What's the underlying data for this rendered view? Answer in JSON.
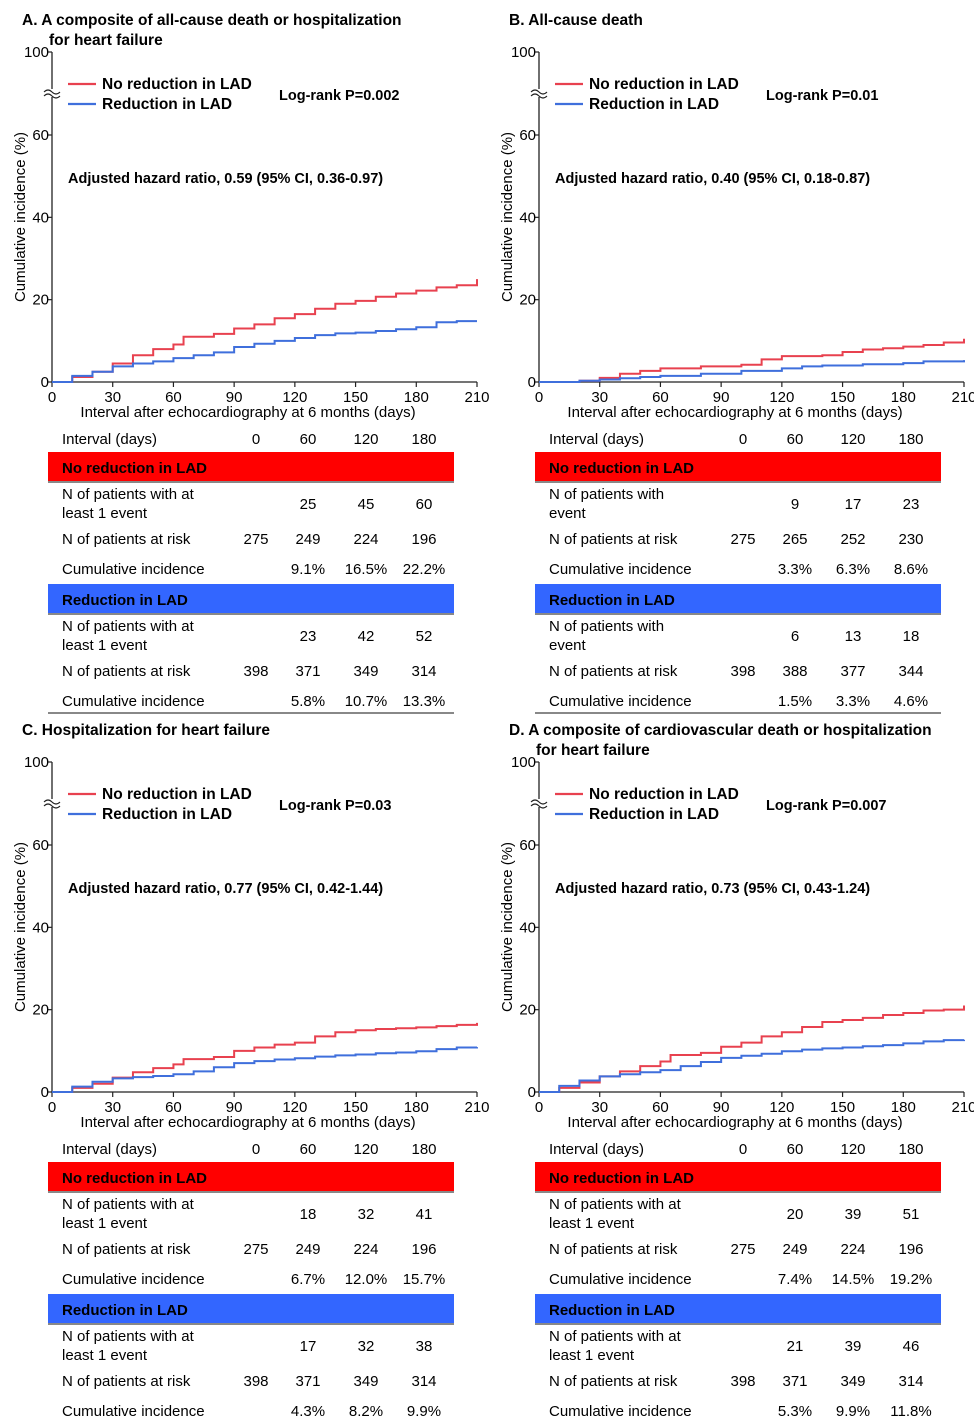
{
  "panels": [
    {
      "title_lines": [
        "A.  A composite of all-cause death or hospitalization",
        "for heart failure"
      ],
      "legend": [
        "No reduction in LAD",
        "Reduction in LAD"
      ],
      "logrank": "Log-rank P=0.002",
      "hazard": "Adjusted hazard ratio, 0.59 (95% CI, 0.36-0.97)",
      "table": {
        "header": [
          "Interval (days)",
          "0",
          "60",
          "120",
          "180"
        ],
        "groups": [
          {
            "name": "No reduction in LAD",
            "color": "#ff0000",
            "rows": [
              {
                "label": [
                  "N of patients with at",
                  "least 1 event"
                ],
                "values": [
                  "",
                  "25",
                  "45",
                  "60"
                ]
              },
              {
                "label": [
                  "N of patients at risk"
                ],
                "values": [
                  "275",
                  "249",
                  "224",
                  "196"
                ]
              },
              {
                "label": [
                  "Cumulative incidence"
                ],
                "values": [
                  "",
                  "9.1%",
                  "16.5%",
                  "22.2%"
                ]
              }
            ]
          },
          {
            "name": "Reduction in LAD",
            "color": "#3366ff",
            "rows": [
              {
                "label": [
                  "N of patients with at",
                  "least 1 event"
                ],
                "values": [
                  "",
                  "23",
                  "42",
                  "52"
                ]
              },
              {
                "label": [
                  "N of patients at risk"
                ],
                "values": [
                  "398",
                  "371",
                  "349",
                  "314"
                ]
              },
              {
                "label": [
                  "Cumulative incidence"
                ],
                "values": [
                  "",
                  "5.8%",
                  "10.7%",
                  "13.3%"
                ]
              }
            ]
          }
        ]
      }
    },
    {
      "title_lines": [
        "B.  All-cause death"
      ],
      "legend": [
        "No reduction in LAD",
        "Reduction in LAD"
      ],
      "logrank": "Log-rank P=0.01",
      "hazard": "Adjusted hazard ratio, 0.40 (95% CI, 0.18-0.87)",
      "table": {
        "header": [
          "Interval (days)",
          "0",
          "60",
          "120",
          "180"
        ],
        "groups": [
          {
            "name": "No reduction in LAD",
            "color": "#ff0000",
            "rows": [
              {
                "label": [
                  "N of patients with",
                  "event"
                ],
                "values": [
                  "",
                  "9",
                  "17",
                  "23"
                ]
              },
              {
                "label": [
                  "N of patients at risk"
                ],
                "values": [
                  "275",
                  "265",
                  "252",
                  "230"
                ]
              },
              {
                "label": [
                  "Cumulative incidence"
                ],
                "values": [
                  "",
                  "3.3%",
                  "6.3%",
                  "8.6%"
                ]
              }
            ]
          },
          {
            "name": "Reduction in LAD",
            "color": "#3366ff",
            "rows": [
              {
                "label": [
                  "N of patients with",
                  "event"
                ],
                "values": [
                  "",
                  "6",
                  "13",
                  "18"
                ]
              },
              {
                "label": [
                  "N of patients at risk"
                ],
                "values": [
                  "398",
                  "388",
                  "377",
                  "344"
                ]
              },
              {
                "label": [
                  "Cumulative incidence"
                ],
                "values": [
                  "",
                  "1.5%",
                  "3.3%",
                  "4.6%"
                ]
              }
            ]
          }
        ]
      }
    },
    {
      "title_lines": [
        "C.  Hospitalization for heart failure"
      ],
      "legend": [
        "No reduction in LAD",
        "Reduction in LAD"
      ],
      "logrank": "Log-rank P=0.03",
      "hazard": "Adjusted hazard ratio, 0.77 (95% CI, 0.42-1.44)",
      "table": {
        "header": [
          "Interval (days)",
          "0",
          "60",
          "120",
          "180"
        ],
        "groups": [
          {
            "name": "No reduction in LAD",
            "color": "#ff0000",
            "rows": [
              {
                "label": [
                  "N of patients with at",
                  "least 1 event"
                ],
                "values": [
                  "",
                  "18",
                  "32",
                  "41"
                ]
              },
              {
                "label": [
                  "N of patients at risk"
                ],
                "values": [
                  "275",
                  "249",
                  "224",
                  "196"
                ]
              },
              {
                "label": [
                  "Cumulative incidence"
                ],
                "values": [
                  "",
                  "6.7%",
                  "12.0%",
                  "15.7%"
                ]
              }
            ]
          },
          {
            "name": "Reduction in LAD",
            "color": "#3366ff",
            "rows": [
              {
                "label": [
                  "N of patients with at",
                  "least 1 event"
                ],
                "values": [
                  "",
                  "17",
                  "32",
                  "38"
                ]
              },
              {
                "label": [
                  "N of patients at risk"
                ],
                "values": [
                  "398",
                  "371",
                  "349",
                  "314"
                ]
              },
              {
                "label": [
                  "Cumulative incidence"
                ],
                "values": [
                  "",
                  "4.3%",
                  "8.2%",
                  "9.9%"
                ]
              }
            ]
          }
        ]
      }
    },
    {
      "title_lines": [
        "D.  A composite of cardiovascular death or hospitalization",
        "for heart failure"
      ],
      "legend": [
        "No reduction in LAD",
        "Reduction in LAD"
      ],
      "logrank": "Log-rank P=0.007",
      "hazard": "Adjusted hazard ratio, 0.73 (95% CI, 0.43-1.24)",
      "table": {
        "header": [
          "Interval (days)",
          "0",
          "60",
          "120",
          "180"
        ],
        "groups": [
          {
            "name": "No reduction in LAD",
            "color": "#ff0000",
            "rows": [
              {
                "label": [
                  "N of patients with at",
                  "least 1 event"
                ],
                "values": [
                  "",
                  "20",
                  "39",
                  "51"
                ]
              },
              {
                "label": [
                  "N of patients at risk"
                ],
                "values": [
                  "275",
                  "249",
                  "224",
                  "196"
                ]
              },
              {
                "label": [
                  "Cumulative incidence"
                ],
                "values": [
                  "",
                  "7.4%",
                  "14.5%",
                  "19.2%"
                ]
              }
            ]
          },
          {
            "name": "Reduction in LAD",
            "color": "#3366ff",
            "rows": [
              {
                "label": [
                  "N of patients with at",
                  "least 1 event"
                ],
                "values": [
                  "",
                  "21",
                  "39",
                  "46"
                ]
              },
              {
                "label": [
                  "N of patients at risk"
                ],
                "values": [
                  "398",
                  "371",
                  "349",
                  "314"
                ]
              },
              {
                "label": [
                  "Cumulative incidence"
                ],
                "values": [
                  "",
                  "5.3%",
                  "9.9%",
                  "11.8%"
                ]
              }
            ]
          }
        ]
      }
    }
  ],
  "chart_data": [
    {
      "type": "line",
      "xlabel": "Interval after echocardiography at 6 months (days)",
      "ylabel": "Cumulative incidence (%)",
      "xlim": [
        0,
        210
      ],
      "ylim": [
        0,
        100
      ],
      "y_axis_break": true,
      "xticks": [
        0,
        30,
        60,
        90,
        120,
        150,
        180,
        210
      ],
      "yticks": [
        0,
        20,
        40,
        60,
        100
      ],
      "series": [
        {
          "name": "No reduction in LAD",
          "color": "#e8414f",
          "x": [
            0,
            10,
            20,
            30,
            40,
            50,
            60,
            65,
            80,
            90,
            100,
            110,
            120,
            130,
            140,
            150,
            160,
            170,
            180,
            190,
            200,
            210
          ],
          "y": [
            0,
            1.2,
            2.5,
            4.5,
            6.5,
            8,
            9.1,
            11,
            11.7,
            13,
            14,
            15.5,
            16.5,
            17.8,
            19,
            19.7,
            20.7,
            21.5,
            22.2,
            23,
            23.5,
            25
          ]
        },
        {
          "name": "Reduction in LAD",
          "color": "#3f6fdc",
          "x": [
            0,
            10,
            20,
            30,
            40,
            50,
            60,
            70,
            80,
            90,
            100,
            110,
            120,
            130,
            140,
            150,
            160,
            170,
            180,
            190,
            200,
            210
          ],
          "y": [
            0,
            1.5,
            2.5,
            3.8,
            4.5,
            5,
            5.8,
            6.5,
            7.2,
            8.5,
            9.3,
            10,
            10.7,
            11.4,
            11.8,
            12,
            12.4,
            12.8,
            13.3,
            14.5,
            14.8,
            14.8
          ]
        }
      ]
    },
    {
      "type": "line",
      "xlabel": "Interval after echocardiography at 6 months (days)",
      "ylabel": "Cumulative incidence (%)",
      "xlim": [
        0,
        210
      ],
      "ylim": [
        0,
        100
      ],
      "y_axis_break": true,
      "xticks": [
        0,
        30,
        60,
        90,
        120,
        150,
        180,
        210
      ],
      "yticks": [
        0,
        20,
        40,
        60,
        100
      ],
      "series": [
        {
          "name": "No reduction in LAD",
          "color": "#e8414f",
          "x": [
            0,
            20,
            30,
            40,
            50,
            60,
            80,
            100,
            110,
            120,
            140,
            150,
            160,
            170,
            180,
            190,
            200,
            210
          ],
          "y": [
            0,
            0.3,
            1,
            2,
            2.7,
            3.3,
            3.8,
            4.2,
            5.5,
            6.3,
            6.5,
            7.3,
            7.9,
            8.2,
            8.6,
            9,
            9.6,
            10.5
          ]
        },
        {
          "name": "Reduction in LAD",
          "color": "#3f6fdc",
          "x": [
            0,
            20,
            30,
            40,
            50,
            60,
            80,
            100,
            120,
            130,
            140,
            160,
            180,
            190,
            210
          ],
          "y": [
            0,
            0.3,
            0.6,
            0.9,
            1.2,
            1.5,
            2,
            2.7,
            3.3,
            3.8,
            4,
            4.3,
            4.6,
            5,
            5.3
          ]
        }
      ]
    },
    {
      "type": "line",
      "xlabel": "Interval after echocardiography at 6 months (days)",
      "ylabel": "Cumulative incidence (%)",
      "xlim": [
        0,
        210
      ],
      "ylim": [
        0,
        100
      ],
      "y_axis_break": true,
      "xticks": [
        0,
        30,
        60,
        90,
        120,
        150,
        180,
        210
      ],
      "yticks": [
        0,
        20,
        40,
        60,
        100
      ],
      "series": [
        {
          "name": "No reduction in LAD",
          "color": "#e8414f",
          "x": [
            0,
            10,
            20,
            30,
            40,
            50,
            60,
            65,
            80,
            90,
            100,
            110,
            120,
            130,
            140,
            150,
            160,
            170,
            180,
            190,
            200,
            210
          ],
          "y": [
            0,
            1,
            2,
            3.5,
            4.8,
            5.8,
            6.7,
            8,
            8.5,
            10,
            10.8,
            11.5,
            12,
            13.5,
            14.5,
            15,
            15.3,
            15.5,
            15.7,
            16,
            16.3,
            16.8
          ]
        },
        {
          "name": "Reduction in LAD",
          "color": "#3f6fdc",
          "x": [
            0,
            10,
            20,
            30,
            40,
            50,
            60,
            70,
            80,
            90,
            100,
            110,
            120,
            130,
            140,
            150,
            160,
            170,
            180,
            190,
            200,
            210
          ],
          "y": [
            0,
            1.3,
            2.5,
            3.3,
            3.6,
            3.9,
            4.3,
            5,
            6,
            7,
            7.5,
            7.9,
            8.2,
            8.6,
            8.9,
            9.1,
            9.4,
            9.6,
            9.9,
            10.4,
            10.8,
            10.9
          ]
        }
      ]
    },
    {
      "type": "line",
      "xlabel": "Interval after echocardiography at 6 months (days)",
      "ylabel": "Cumulative incidence (%)",
      "xlim": [
        0,
        210
      ],
      "ylim": [
        0,
        100
      ],
      "y_axis_break": true,
      "xticks": [
        0,
        30,
        60,
        90,
        120,
        150,
        180,
        210
      ],
      "yticks": [
        0,
        20,
        40,
        60,
        100
      ],
      "series": [
        {
          "name": "No reduction in LAD",
          "color": "#e8414f",
          "x": [
            0,
            10,
            20,
            30,
            40,
            50,
            60,
            65,
            80,
            90,
            100,
            110,
            120,
            130,
            140,
            150,
            160,
            170,
            180,
            190,
            200,
            210
          ],
          "y": [
            0,
            1,
            2.3,
            3.8,
            5,
            6.3,
            7.4,
            9,
            9.5,
            11,
            12,
            13.5,
            14.5,
            15.8,
            17,
            17.5,
            18,
            18.7,
            19.2,
            19.8,
            20,
            21
          ]
        },
        {
          "name": "Reduction in LAD",
          "color": "#3f6fdc",
          "x": [
            0,
            10,
            20,
            30,
            40,
            50,
            60,
            70,
            80,
            90,
            100,
            110,
            120,
            130,
            140,
            150,
            160,
            170,
            180,
            190,
            200,
            210
          ],
          "y": [
            0,
            1.5,
            2.8,
            3.8,
            4.3,
            4.8,
            5.3,
            6.3,
            7.3,
            8.3,
            8.8,
            9.3,
            9.9,
            10.3,
            10.6,
            10.8,
            11.1,
            11.4,
            11.8,
            12.3,
            12.6,
            12.7
          ]
        }
      ]
    }
  ]
}
